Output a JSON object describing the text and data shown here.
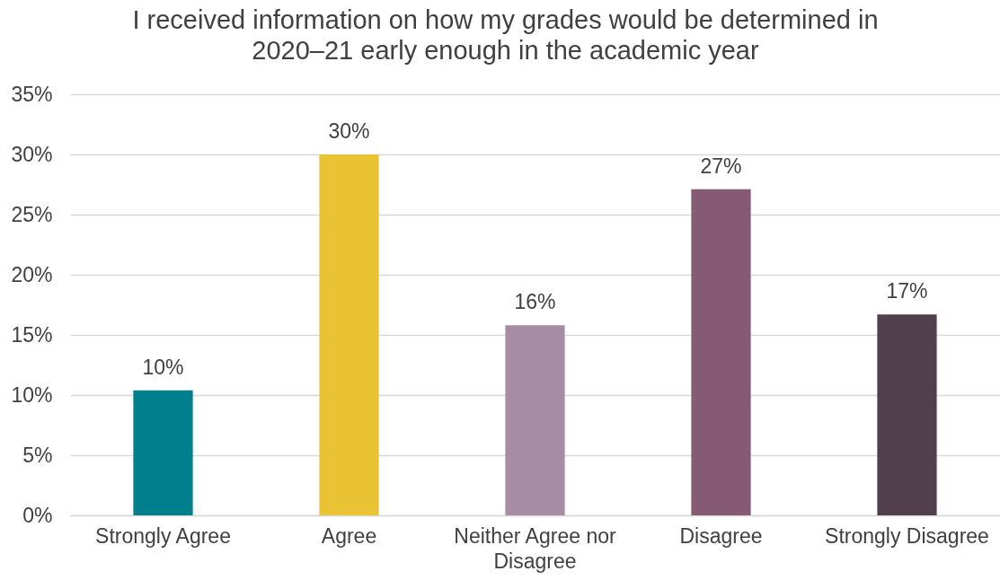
{
  "chart_data": {
    "type": "bar",
    "title": "I received information on how my grades would be determined in 2020–21 early enough in the academic year",
    "categories": [
      "Strongly Agree",
      "Agree",
      "Neither Agree nor Disagree",
      "Disagree",
      "Strongly Disagree"
    ],
    "values": [
      10.4,
      30.0,
      15.8,
      27.1,
      16.7
    ],
    "value_labels": [
      "10%",
      "30%",
      "16%",
      "27%",
      "17%"
    ],
    "colors": [
      "#027f8d",
      "#eac334",
      "#a78da4",
      "#875a73",
      "#523f4d"
    ],
    "ylim": [
      0,
      35
    ],
    "yticks": [
      {
        "value": 0,
        "label": "0%"
      },
      {
        "value": 5,
        "label": "5%"
      },
      {
        "value": 10,
        "label": "10%"
      },
      {
        "value": 15,
        "label": "15%"
      },
      {
        "value": 20,
        "label": "20%"
      },
      {
        "value": 25,
        "label": "25%"
      },
      {
        "value": 30,
        "label": "30%"
      },
      {
        "value": 35,
        "label": "35%"
      }
    ],
    "grid": "y"
  }
}
